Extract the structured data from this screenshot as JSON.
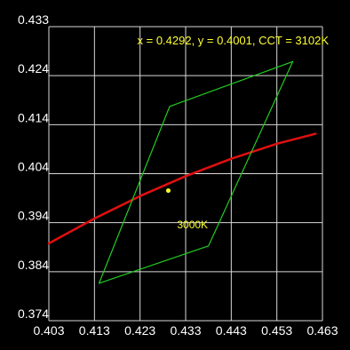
{
  "readout": "x = 0.4292, y = 0.4001, CCT = 3102K",
  "colors": {
    "background": "#000000",
    "grid": "#d8d8d8",
    "planckian_locus": "#e01010",
    "quadrangle": "#22cc22",
    "marker": "#ffff33",
    "text": "#ffffff",
    "readout": "#ffff33"
  },
  "chart_data": {
    "type": "line",
    "title": "",
    "xlabel": "",
    "ylabel": "",
    "xlim": [
      0.403,
      0.463
    ],
    "ylim": [
      0.374,
      0.433
    ],
    "grid": true,
    "x_ticks": [
      "0.403",
      "0.413",
      "0.423",
      "0.433",
      "0.443",
      "0.453",
      "0.463"
    ],
    "y_ticks": [
      "0.433",
      "0.424",
      "0.414",
      "0.404",
      "0.394",
      "0.384",
      "0.374"
    ],
    "series": [
      {
        "role": "planckian-locus",
        "x": [
          0.403,
          0.413,
          0.423,
          0.433,
          0.443,
          0.453,
          0.4615
        ],
        "y": [
          0.3895,
          0.3945,
          0.399,
          0.403,
          0.4065,
          0.4095,
          0.4115
        ]
      },
      {
        "role": "quadrangle",
        "x": [
          0.4295,
          0.4565,
          0.438,
          0.414,
          0.4295
        ],
        "y": [
          0.417,
          0.426,
          0.389,
          0.3815,
          0.417
        ]
      }
    ],
    "point": {
      "x": 0.4292,
      "y": 0.4001
    },
    "annotations": [
      {
        "text": "3000K",
        "x": 0.4345,
        "y": 0.3925
      }
    ]
  }
}
